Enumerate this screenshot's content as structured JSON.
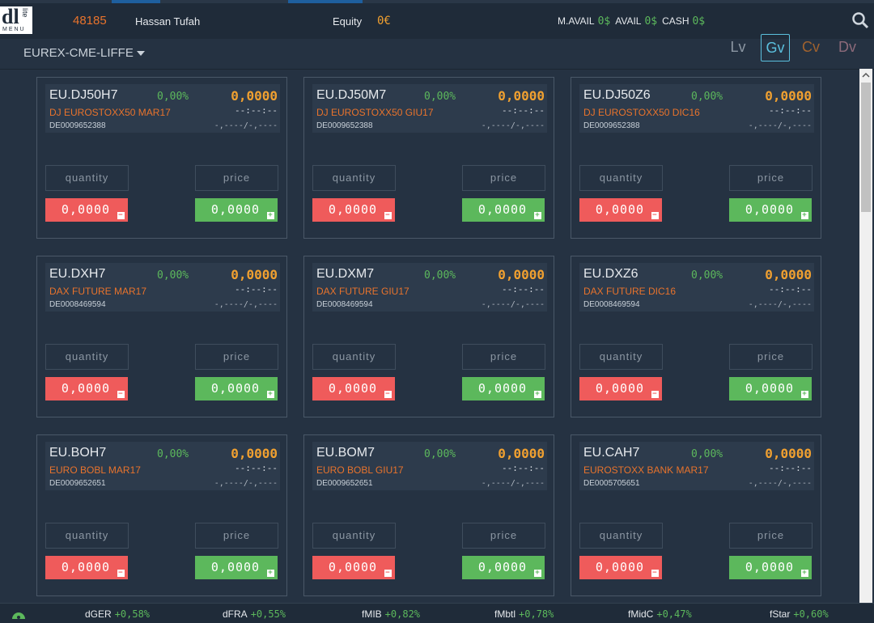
{
  "header": {
    "logo": "dl",
    "logo_sub": "lite",
    "menu": "MENU",
    "account": "48185",
    "user": "Hassan Tufah",
    "equity_label": "Equity",
    "equity": "0€",
    "balances": [
      {
        "label": "M.AVAIL",
        "value": "0$"
      },
      {
        "label": "AVAIL",
        "value": "0$"
      },
      {
        "label": "CASH",
        "value": "0$"
      }
    ]
  },
  "toolbar": {
    "market": "EUREX-CME-LIFFE",
    "views": [
      "Lv",
      "Gv",
      "Cv",
      "Dv"
    ],
    "active_view": 1
  },
  "cards": [
    {
      "symbol": "EU.DJ50H7",
      "change": "0,00%",
      "price": "0,0000",
      "name": "DJ EUROSTOXX50 MAR17",
      "time": "--:--:--",
      "isin": "DE0009652388",
      "range": "-,----/-,----",
      "quantity_placeholder": "quantity",
      "price_placeholder": "price",
      "sell": "0,0000",
      "buy": "0,0000"
    },
    {
      "symbol": "EU.DJ50M7",
      "change": "0,00%",
      "price": "0,0000",
      "name": "DJ EUROSTOXX50 GIU17",
      "time": "--:--:--",
      "isin": "DE0009652388",
      "range": "-,----/-,----",
      "quantity_placeholder": "quantity",
      "price_placeholder": "price",
      "sell": "0,0000",
      "buy": "0,0000"
    },
    {
      "symbol": "EU.DJ50Z6",
      "change": "0,00%",
      "price": "0,0000",
      "name": "DJ EUROSTOXX50 DIC16",
      "time": "--:--:--",
      "isin": "DE0009652388",
      "range": "-,----/-,----",
      "quantity_placeholder": "quantity",
      "price_placeholder": "price",
      "sell": "0,0000",
      "buy": "0,0000"
    },
    {
      "symbol": "EU.DXH7",
      "change": "0,00%",
      "price": "0,0000",
      "name": "DAX FUTURE MAR17",
      "time": "--:--:--",
      "isin": "DE0008469594",
      "range": "-,----/-,----",
      "quantity_placeholder": "quantity",
      "price_placeholder": "price",
      "sell": "0,0000",
      "buy": "0,0000"
    },
    {
      "symbol": "EU.DXM7",
      "change": "0,00%",
      "price": "0,0000",
      "name": "DAX FUTURE GIU17",
      "time": "--:--:--",
      "isin": "DE0008469594",
      "range": "-,----/-,----",
      "quantity_placeholder": "quantity",
      "price_placeholder": "price",
      "sell": "0,0000",
      "buy": "0,0000"
    },
    {
      "symbol": "EU.DXZ6",
      "change": "0,00%",
      "price": "0,0000",
      "name": "DAX FUTURE DIC16",
      "time": "--:--:--",
      "isin": "DE0008469594",
      "range": "-,----/-,----",
      "quantity_placeholder": "quantity",
      "price_placeholder": "price",
      "sell": "0,0000",
      "buy": "0,0000"
    },
    {
      "symbol": "EU.BOH7",
      "change": "0,00%",
      "price": "0,0000",
      "name": "EURO BOBL MAR17",
      "time": "--:--:--",
      "isin": "DE0009652651",
      "range": "-,----/-,----",
      "quantity_placeholder": "quantity",
      "price_placeholder": "price",
      "sell": "0,0000",
      "buy": "0,0000"
    },
    {
      "symbol": "EU.BOM7",
      "change": "0,00%",
      "price": "0,0000",
      "name": "EURO BOBL GIU17",
      "time": "--:--:--",
      "isin": "DE0009652651",
      "range": "-,----/-,----",
      "quantity_placeholder": "quantity",
      "price_placeholder": "price",
      "sell": "0,0000",
      "buy": "0,0000"
    },
    {
      "symbol": "EU.CAH7",
      "change": "0,00%",
      "price": "0,0000",
      "name": "EUROSTOXX BANK MAR17",
      "time": "--:--:--",
      "isin": "DE0005705651",
      "range": "-,----/-,----",
      "quantity_placeholder": "quantity",
      "price_placeholder": "price",
      "sell": "0,0000",
      "buy": "0,0000"
    }
  ],
  "footer": {
    "indices": [
      {
        "name": "dGER",
        "change": "+0,58%"
      },
      {
        "name": "dFRA",
        "change": "+0,55%"
      },
      {
        "name": "fMIB",
        "change": "+0,82%"
      },
      {
        "name": "fMbtl",
        "change": "+0,78%"
      },
      {
        "name": "fMidC",
        "change": "+0,47%"
      },
      {
        "name": "fStar",
        "change": "+0,60%"
      }
    ]
  }
}
